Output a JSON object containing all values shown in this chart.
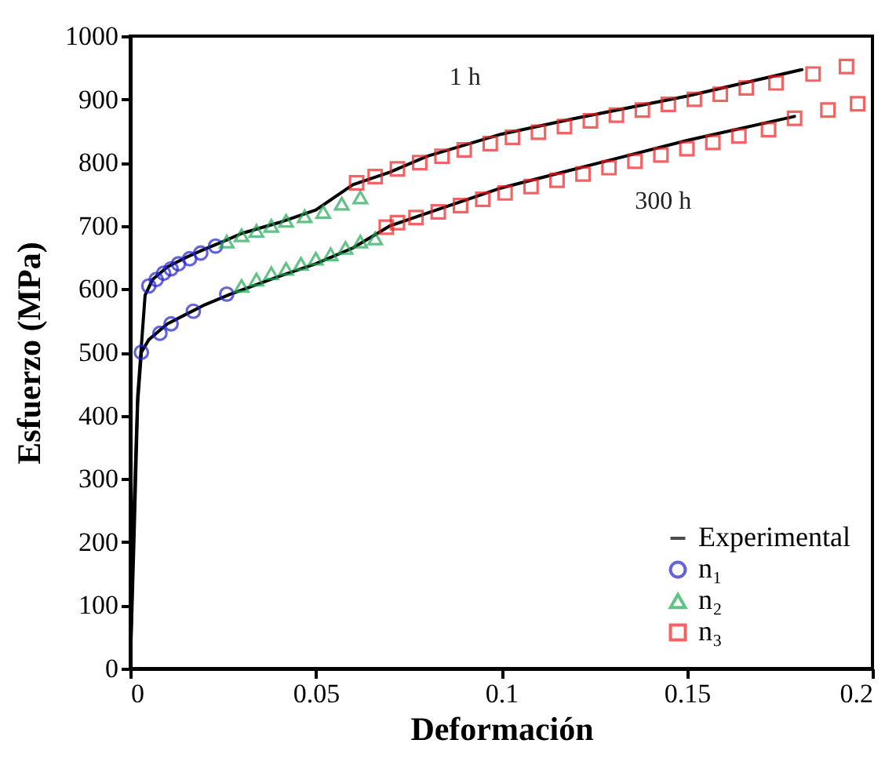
{
  "chart_data": {
    "type": "line",
    "xlabel": "Deformación",
    "ylabel": "Esfuerzo (MPa)",
    "xlim": [
      0,
      0.2
    ],
    "ylim": [
      0,
      1000
    ],
    "xticks": [
      0,
      0.05,
      0.1,
      0.15,
      0.2
    ],
    "yticks": [
      0,
      100,
      200,
      300,
      400,
      500,
      600,
      700,
      800,
      900,
      1000
    ],
    "grid": false,
    "legend": "bottom right",
    "annotations": [
      "1 h",
      "300 h"
    ],
    "series": [
      {
        "name": "Experimental",
        "color": "#000000",
        "marker": "none",
        "x": [
          0,
          0.001,
          0.002,
          0.004,
          0.006,
          0.01,
          0.015,
          0.02,
          0.025,
          0.03,
          0.04,
          0.05,
          0.06,
          0.07,
          0.08,
          0.1,
          0.12,
          0.15,
          0.181
        ],
        "values": [
          0,
          250,
          430,
          590,
          615,
          635,
          650,
          663,
          675,
          688,
          705,
          725,
          765,
          785,
          810,
          845,
          870,
          905,
          947
        ]
      },
      {
        "color": "#000000",
        "marker": "none",
        "x": [
          0,
          0.001,
          0.002,
          0.003,
          0.005,
          0.01,
          0.015,
          0.02,
          0.027,
          0.04,
          0.05,
          0.06,
          0.07,
          0.08,
          0.1,
          0.12,
          0.15,
          0.179
        ],
        "values": [
          0,
          200,
          420,
          500,
          520,
          545,
          560,
          575,
          592,
          620,
          640,
          665,
          700,
          720,
          760,
          790,
          835,
          873
        ]
      },
      {
        "type": "scatter",
        "name": "n₁",
        "color": "#2222cc",
        "marker": "circle",
        "x": [
          0.005,
          0.007,
          0.009,
          0.011,
          0.013,
          0.016,
          0.019,
          0.023,
          0.003,
          0.008,
          0.011,
          0.017,
          0.026
        ],
        "values": [
          605,
          615,
          625,
          632,
          640,
          648,
          657,
          668,
          500,
          530,
          545,
          565,
          592
        ]
      },
      {
        "type": "scatter",
        "name": "n₂",
        "color": "#22aa55",
        "marker": "triangle",
        "x": [
          0.026,
          0.03,
          0.034,
          0.038,
          0.042,
          0.047,
          0.052,
          0.057,
          0.062,
          0.03,
          0.034,
          0.038,
          0.042,
          0.046,
          0.05,
          0.054,
          0.058,
          0.062,
          0.066
        ],
        "values": [
          675,
          685,
          692,
          700,
          708,
          715,
          722,
          735,
          745,
          605,
          615,
          625,
          632,
          640,
          648,
          655,
          665,
          675,
          680
        ]
      },
      {
        "type": "scatter",
        "name": "n₃",
        "color": "#ee2222",
        "marker": "square",
        "x": [
          0.061,
          0.066,
          0.072,
          0.078,
          0.084,
          0.09,
          0.097,
          0.103,
          0.11,
          0.117,
          0.124,
          0.131,
          0.138,
          0.145,
          0.152,
          0.159,
          0.166,
          0.174,
          0.184,
          0.193,
          0.069,
          0.072,
          0.077,
          0.083,
          0.089,
          0.095,
          0.101,
          0.108,
          0.115,
          0.122,
          0.129,
          0.136,
          0.143,
          0.15,
          0.157,
          0.164,
          0.172,
          0.179,
          0.188,
          0.196
        ],
        "values": [
          768,
          778,
          790,
          800,
          810,
          820,
          830,
          840,
          848,
          857,
          866,
          875,
          883,
          892,
          900,
          908,
          918,
          926,
          940,
          952,
          698,
          705,
          713,
          722,
          732,
          742,
          752,
          762,
          772,
          782,
          792,
          802,
          812,
          822,
          832,
          842,
          852,
          870,
          883,
          893
        ]
      }
    ]
  }
}
